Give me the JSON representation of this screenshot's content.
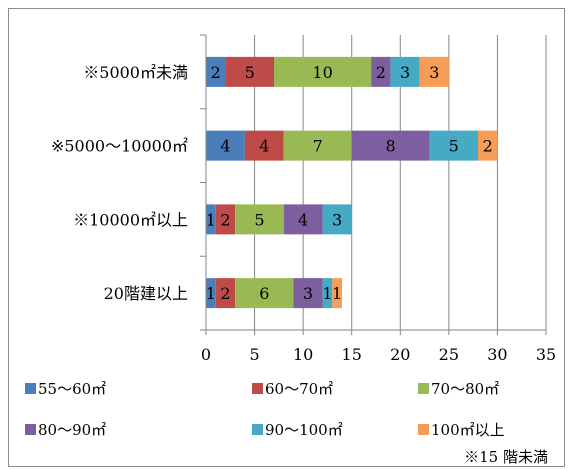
{
  "chart_data": {
    "type": "bar",
    "orientation": "horizontal",
    "stacked": true,
    "categories": [
      "※5000㎡未満",
      "※5000～10000㎡",
      "※10000㎡以上",
      "20階建以上"
    ],
    "series": [
      {
        "name": "55～60㎡",
        "color": "#4a7ebb",
        "values": [
          2,
          4,
          1,
          1
        ]
      },
      {
        "name": "60～70㎡",
        "color": "#be4b48",
        "values": [
          5,
          4,
          2,
          2
        ]
      },
      {
        "name": "70～80㎡",
        "color": "#98b954",
        "values": [
          10,
          7,
          5,
          6
        ]
      },
      {
        "name": "80～90㎡",
        "color": "#7d5fa0",
        "values": [
          2,
          8,
          4,
          3
        ]
      },
      {
        "name": "90～100㎡",
        "color": "#46aac5",
        "values": [
          3,
          5,
          3,
          1
        ]
      },
      {
        "name": "100㎡以上",
        "color": "#f59d56",
        "values": [
          3,
          2,
          0,
          1
        ]
      }
    ],
    "xlim": [
      0,
      35
    ],
    "xticks": [
      0,
      5,
      10,
      15,
      20,
      25,
      30,
      35
    ],
    "grid": true,
    "legend_position": "bottom",
    "footnote": "※15 階未満"
  }
}
